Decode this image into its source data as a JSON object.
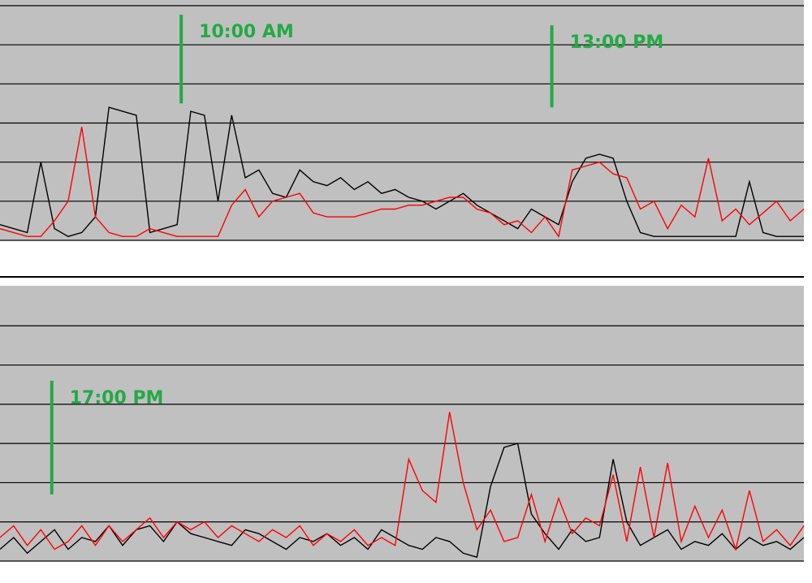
{
  "chart_data": [
    {
      "type": "line",
      "ylim": [
        0,
        6
      ],
      "yticks": [
        0,
        1,
        2,
        3,
        4,
        5,
        6
      ],
      "ytick_labels": false,
      "grid": true,
      "series": [
        {
          "color": "#000000",
          "values": [
            0.4,
            0.3,
            0.2,
            2.0,
            0.3,
            0.1,
            0.2,
            0.6,
            3.4,
            3.3,
            3.2,
            0.2,
            0.3,
            0.4,
            3.3,
            3.2,
            1.0,
            3.2,
            1.6,
            1.8,
            1.2,
            1.1,
            1.8,
            1.5,
            1.4,
            1.6,
            1.3,
            1.5,
            1.2,
            1.3,
            1.1,
            1.0,
            0.8,
            1.0,
            1.2,
            0.9,
            0.7,
            0.5,
            0.3,
            0.8,
            0.6,
            0.4,
            1.5,
            2.1,
            2.2,
            2.1,
            1.0,
            0.2,
            0.1,
            0.1,
            0.1,
            0.1,
            0.1,
            0.1,
            0.1,
            1.5,
            0.2,
            0.1,
            0.1,
            0.1
          ]
        },
        {
          "color": "#ff0000",
          "values": [
            0.3,
            0.2,
            0.1,
            0.1,
            0.5,
            1.0,
            2.9,
            0.6,
            0.2,
            0.1,
            0.1,
            0.3,
            0.2,
            0.1,
            0.1,
            0.1,
            0.1,
            0.9,
            1.3,
            0.6,
            1.0,
            1.1,
            1.2,
            0.7,
            0.6,
            0.6,
            0.6,
            0.7,
            0.8,
            0.8,
            0.9,
            0.9,
            1.0,
            1.1,
            1.1,
            0.8,
            0.7,
            0.4,
            0.5,
            0.2,
            0.6,
            0.1,
            1.8,
            1.9,
            2.0,
            1.7,
            1.6,
            0.8,
            1.0,
            0.3,
            0.9,
            0.6,
            2.1,
            0.5,
            0.8,
            0.4,
            0.7,
            1.0,
            0.5,
            0.8
          ]
        }
      ],
      "annotations": [
        {
          "text": "10:00 AM",
          "x": 13.3,
          "y": [
            5.77,
            3.5
          ],
          "color": "#22aa44"
        },
        {
          "text": "13:00 PM",
          "x": 40.5,
          "y": [
            5.5,
            3.4
          ],
          "color": "#22aa44"
        }
      ]
    },
    {
      "type": "line",
      "ylim": [
        0,
        7
      ],
      "yticks": [
        0,
        1,
        2,
        3,
        4,
        5,
        6
      ],
      "ytick_labels": false,
      "grid": true,
      "series": [
        {
          "color": "#000000",
          "values": [
            0.3,
            0.6,
            0.2,
            0.5,
            0.8,
            0.3,
            0.6,
            0.5,
            0.9,
            0.4,
            0.8,
            0.9,
            0.5,
            1.0,
            0.7,
            0.6,
            0.5,
            0.4,
            0.8,
            0.7,
            0.5,
            0.3,
            0.6,
            0.5,
            0.7,
            0.4,
            0.6,
            0.3,
            0.8,
            0.6,
            0.4,
            0.3,
            0.6,
            0.5,
            0.2,
            0.1,
            1.9,
            2.9,
            3.0,
            1.2,
            0.7,
            0.3,
            0.8,
            0.5,
            0.6,
            2.6,
            1.0,
            0.4,
            0.6,
            0.8,
            0.3,
            0.5,
            0.4,
            0.7,
            0.3,
            0.6,
            0.4,
            0.5,
            0.3,
            0.6
          ]
        },
        {
          "color": "#ff0000",
          "values": [
            0.6,
            0.9,
            0.4,
            0.8,
            0.3,
            0.5,
            0.9,
            0.4,
            0.9,
            0.5,
            0.8,
            1.1,
            0.6,
            1.0,
            0.8,
            1.0,
            0.6,
            0.9,
            0.7,
            0.5,
            0.8,
            0.6,
            0.9,
            0.4,
            0.7,
            0.5,
            0.8,
            0.4,
            0.6,
            0.4,
            2.6,
            1.8,
            1.5,
            3.8,
            2.0,
            0.8,
            1.3,
            0.5,
            0.6,
            1.7,
            0.5,
            1.6,
            0.7,
            1.1,
            0.9,
            2.2,
            0.5,
            2.4,
            0.6,
            2.5,
            0.5,
            1.4,
            0.6,
            1.3,
            0.3,
            1.8,
            0.5,
            0.8,
            0.4,
            0.9
          ]
        }
      ],
      "annotations": [
        {
          "text": "17:00 PM",
          "x": 3.8,
          "y": [
            4.6,
            1.7
          ],
          "color": "#22aa44"
        }
      ]
    }
  ]
}
